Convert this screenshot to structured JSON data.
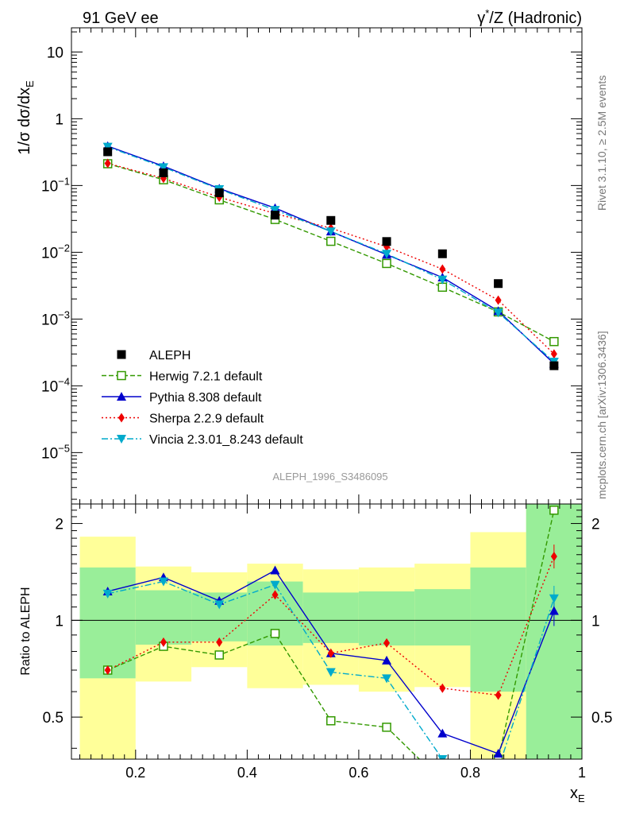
{
  "chart_data": {
    "type": "line",
    "header": {
      "left": "91 GeV ee",
      "right_prefix": "γ",
      "right_sup": "*",
      "right_suffix": "/Z (Hadronic)"
    },
    "side_text": {
      "rivet": "Rivet 3.1.10, ≥ 2.5M events",
      "mcplots": "mcplots.cern.ch [arXiv:1306.3436]"
    },
    "analysis_id": "ALEPH_1996_S3486095",
    "xlabel_main": "x",
    "xlabel_sub": "E",
    "x_ticks": [
      "0.2",
      "0.4",
      "0.6",
      "0.8",
      "1"
    ],
    "x_tick_values": [
      0.2,
      0.4,
      0.6,
      0.8,
      1.0
    ],
    "xlim": [
      0.085,
      1.0
    ],
    "top_panel": {
      "ylabel": "1/σ dσ/dx",
      "ylabel_sub": "E",
      "scale": "log",
      "ylim": [
        1.7e-06,
        23
      ],
      "y_ticks": [
        {
          "value": 10,
          "base": "10",
          "exp": ""
        },
        {
          "value": 1,
          "base": "1",
          "exp": ""
        },
        {
          "value": 0.1,
          "base": "10",
          "exp": "−1"
        },
        {
          "value": 0.01,
          "base": "10",
          "exp": "−2"
        },
        {
          "value": 0.001,
          "base": "10",
          "exp": "−3"
        },
        {
          "value": 0.0001,
          "base": "10",
          "exp": "−4"
        },
        {
          "value": 1e-05,
          "base": "10",
          "exp": "−5"
        }
      ],
      "x": [
        0.15,
        0.25,
        0.35,
        0.45,
        0.55,
        0.65,
        0.75,
        0.85,
        0.95
      ],
      "data": {
        "name": "ALEPH",
        "values": [
          0.32,
          0.155,
          0.078,
          0.036,
          0.03,
          0.0145,
          0.0095,
          0.0034,
          0.0002
        ]
      },
      "series": [
        {
          "name": "Herwig 7.2.1 default",
          "color": "#339900",
          "dash": "6,3",
          "marker": "open-square",
          "values": [
            0.212,
            0.122,
            0.061,
            0.031,
            0.0146,
            0.0068,
            0.003,
            0.00128,
            0.00046
          ]
        },
        {
          "name": "Pythia 8.308 default",
          "color": "#0000cc",
          "dash": "",
          "marker": "triangle-up",
          "values": [
            0.39,
            0.195,
            0.09,
            0.046,
            0.0205,
            0.0092,
            0.0042,
            0.00132,
            0.000215
          ]
        },
        {
          "name": "Sherpa 2.2.9 default",
          "color": "#ee0000",
          "dash": "2,3",
          "marker": "diamond",
          "values": [
            0.215,
            0.128,
            0.067,
            0.038,
            0.023,
            0.0121,
            0.0056,
            0.00192,
            0.0003
          ]
        },
        {
          "name": "Vincia 2.3.01_8.243 default",
          "color": "#00aacc",
          "dash": "8,3,2,3",
          "marker": "triangle-down",
          "values": [
            0.38,
            0.188,
            0.088,
            0.043,
            0.0205,
            0.0095,
            0.0039,
            0.00125,
            0.00023
          ]
        }
      ]
    },
    "ratio_panel": {
      "ylabel": "Ratio to ALEPH",
      "scale": "log",
      "ylim": [
        0.37,
        2.3
      ],
      "y_ticks": [
        {
          "value": 0.5,
          "label": "0.5"
        },
        {
          "value": 1,
          "label": "1"
        },
        {
          "value": 2,
          "label": "2"
        }
      ],
      "bins": [
        {
          "lo": 0.1,
          "hi": 0.2,
          "green": [
            0.66,
            1.46
          ],
          "yellow": [
            0.36,
            1.82
          ]
        },
        {
          "lo": 0.2,
          "hi": 0.3,
          "green": [
            0.84,
            1.24
          ],
          "yellow": [
            0.645,
            1.47
          ]
        },
        {
          "lo": 0.3,
          "hi": 0.4,
          "green": [
            0.86,
            1.22
          ],
          "yellow": [
            0.715,
            1.41
          ]
        },
        {
          "lo": 0.4,
          "hi": 0.5,
          "green": [
            0.835,
            1.32
          ],
          "yellow": [
            0.615,
            1.5
          ]
        },
        {
          "lo": 0.5,
          "hi": 0.6,
          "green": [
            0.85,
            1.22
          ],
          "yellow": [
            0.63,
            1.44
          ]
        },
        {
          "lo": 0.6,
          "hi": 0.7,
          "green": [
            0.835,
            1.23
          ],
          "yellow": [
            0.6,
            1.46
          ]
        },
        {
          "lo": 0.7,
          "hi": 0.8,
          "green": [
            0.835,
            1.25
          ],
          "yellow": [
            0.62,
            1.5
          ]
        },
        {
          "lo": 0.8,
          "hi": 0.9,
          "green": [
            0.6,
            1.46
          ],
          "yellow": [
            0.36,
            1.88
          ]
        },
        {
          "lo": 0.9,
          "hi": 1.0,
          "green": [
            0.36,
            2.4
          ],
          "yellow": [
            0.36,
            2.4
          ]
        }
      ],
      "x": [
        0.15,
        0.25,
        0.35,
        0.45,
        0.55,
        0.65,
        0.75,
        0.85,
        0.95
      ],
      "series": [
        {
          "name": "Herwig 7.2.1 default",
          "values": [
            0.7,
            0.83,
            0.78,
            0.91,
            0.487,
            0.465,
            0.315,
            0.37,
            2.2
          ]
        },
        {
          "name": "Pythia 8.308 default",
          "values": [
            1.23,
            1.36,
            1.15,
            1.43,
            0.79,
            0.75,
            0.445,
            0.385,
            1.07
          ]
        },
        {
          "name": "Sherpa 2.2.9 default",
          "values": [
            0.7,
            0.855,
            0.855,
            1.2,
            0.79,
            0.85,
            0.615,
            0.585,
            1.58
          ]
        },
        {
          "name": "Vincia 2.3.01_8.243 default",
          "values": [
            1.21,
            1.32,
            1.12,
            1.29,
            0.69,
            0.66,
            0.37,
            0.345,
            1.17
          ]
        }
      ],
      "last_bin_errors": {
        "Pythia 8.308 default": [
          0.96,
          1.18
        ],
        "Vincia 2.3.01_8.243 default": [
          1.06,
          1.28
        ],
        "Sherpa 2.2.9 default": [
          1.45,
          1.72
        ]
      }
    }
  }
}
